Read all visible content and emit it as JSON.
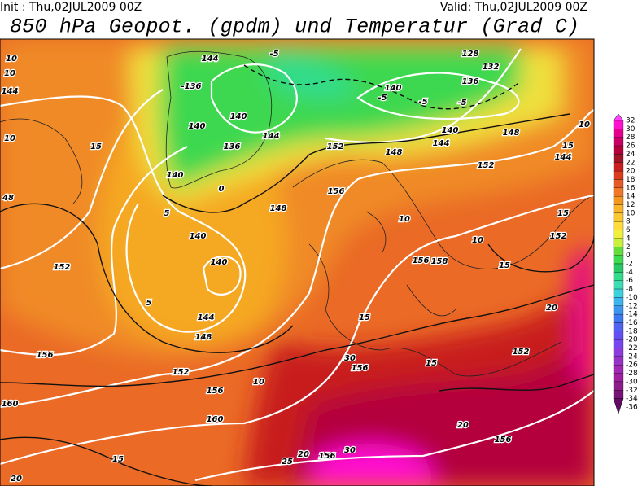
{
  "header": {
    "init": "Init : Thu,02JUL2009 00Z",
    "valid": "Valid: Thu,02JUL2009 00Z",
    "title": "850 hPa Geopot. (gpdm) und Temperatur (Grad C)"
  },
  "colorbar": {
    "labels": [
      "32",
      "30",
      "28",
      "26",
      "24",
      "22",
      "20",
      "18",
      "16",
      "14",
      "12",
      "10",
      "8",
      "6",
      "4",
      "2",
      "0",
      "-2",
      "-4",
      "-6",
      "-8",
      "-10",
      "-12",
      "-14",
      "-16",
      "-18",
      "-20",
      "-22",
      "-24",
      "-26",
      "-28",
      "-30",
      "-32",
      "-34",
      "-36"
    ],
    "colors": [
      "#ff44ff",
      "#ff10d0",
      "#e4008c",
      "#c80064",
      "#b4003c",
      "#a01428",
      "#c81e1e",
      "#dc3c1e",
      "#e65a28",
      "#f07828",
      "#f5961e",
      "#fab428",
      "#fac832",
      "#ffdc3c",
      "#f0f03c",
      "#c8f03c",
      "#64dc3c",
      "#3cdc50",
      "#28c864",
      "#32dc8c",
      "#3cdcb4",
      "#3cd2dc",
      "#3cb4f0",
      "#3c96f0",
      "#3c78f0",
      "#5064f0",
      "#6450f0",
      "#7846f0",
      "#8c3cdc",
      "#9632c8",
      "#a028b4",
      "#a01ea0",
      "#8c1e8c",
      "#781478",
      "#640a64"
    ]
  },
  "map": {
    "labels": [
      "10",
      "10",
      "144",
      "10",
      "48",
      "152",
      "15",
      "5",
      "140",
      "-136",
      "140",
      "140",
      "136",
      "144",
      "0",
      "144",
      "132",
      "128",
      "136",
      "140",
      "140",
      "144",
      "148",
      "148",
      "152",
      "152",
      "156",
      "148",
      "140",
      "140",
      "144",
      "148",
      "152",
      "156",
      "160",
      "160",
      "156",
      "152",
      "156",
      "156",
      "156",
      "10",
      "10",
      "10",
      "15",
      "15",
      "15",
      "15",
      "20",
      "20",
      "20",
      "20",
      "25",
      "30",
      "30",
      "15",
      "152",
      "144",
      "10",
      "15",
      "-5",
      "-5",
      "156",
      "158",
      "-5",
      "-5",
      "5"
    ]
  }
}
